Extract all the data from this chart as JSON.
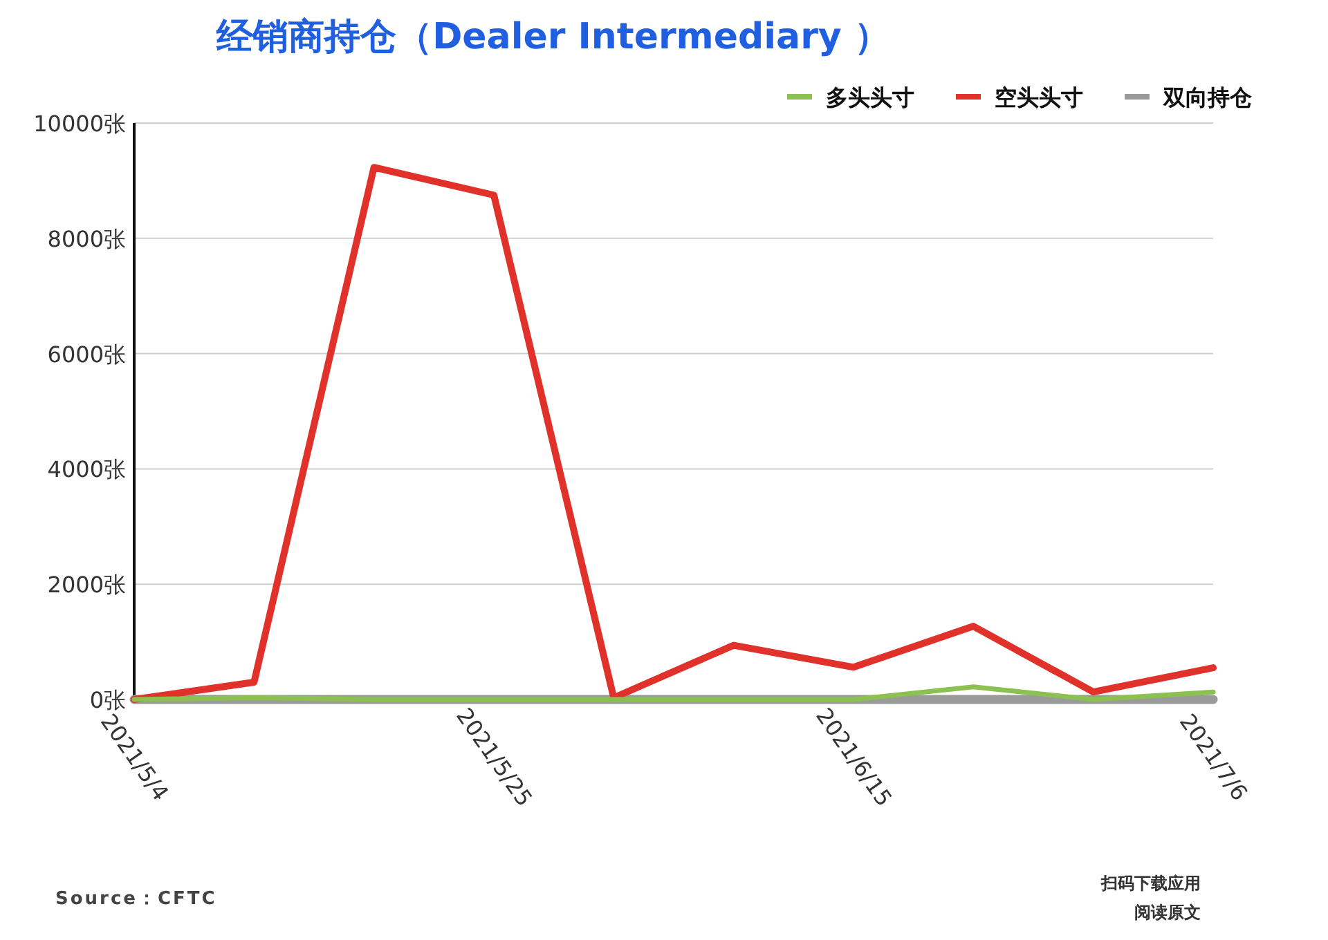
{
  "chart_data": {
    "type": "line",
    "title": "经销商持仓（Dealer Intermediary ）",
    "categories": [
      "2021/5/4",
      null,
      null,
      "2021/5/25",
      null,
      null,
      "2021/6/15",
      null,
      null,
      "2021/7/6"
    ],
    "series": [
      {
        "name": "多头头寸",
        "color": "#8cc152",
        "values": [
          0,
          30,
          0,
          0,
          0,
          0,
          0,
          220,
          0,
          130
        ]
      },
      {
        "name": "空头头寸",
        "color": "#e0322a",
        "values": [
          0,
          300,
          9230,
          8750,
          30,
          940,
          560,
          1270,
          130,
          550
        ]
      },
      {
        "name": "双向持仓",
        "color": "#9a9a9a",
        "values": [
          0,
          0,
          0,
          0,
          0,
          0,
          0,
          0,
          0,
          0
        ]
      }
    ],
    "ylim": [
      0,
      10000
    ],
    "yticks": [
      {
        "value": 0,
        "label": "0张"
      },
      {
        "value": 2000,
        "label": "2000张"
      },
      {
        "value": 4000,
        "label": "4000张"
      },
      {
        "value": 6000,
        "label": "6000张"
      },
      {
        "value": 8000,
        "label": "8000张"
      },
      {
        "value": 10000,
        "label": "10000张"
      }
    ],
    "grid": "y",
    "legend": "top right",
    "marker": "none",
    "line_style": "solid",
    "annotations": [
      "Source：CFTC",
      "扫码下载应用",
      "阅读原文"
    ]
  }
}
